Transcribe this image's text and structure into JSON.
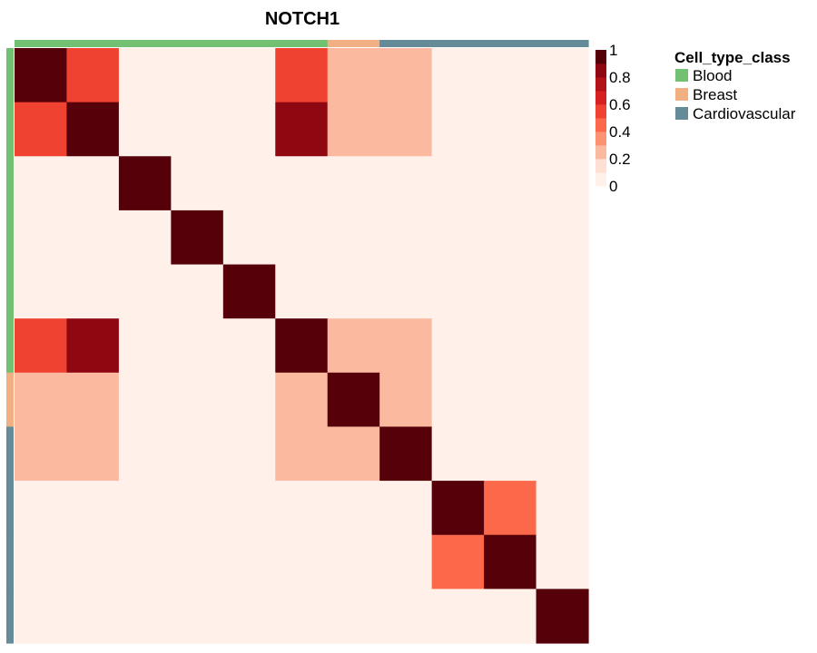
{
  "chart_data": {
    "type": "heatmap",
    "title": "NOTCH1",
    "n": 11,
    "groups": [
      "Blood",
      "Blood",
      "Blood",
      "Blood",
      "Blood",
      "Blood",
      "Breast",
      "Cardiovascular",
      "Cardiovascular",
      "Cardiovascular",
      "Cardiovascular"
    ],
    "matrix": [
      [
        1.0,
        0.6,
        0.05,
        0.05,
        0.05,
        0.6,
        0.3,
        0.3,
        0.05,
        0.05,
        0.05
      ],
      [
        0.6,
        1.0,
        0.05,
        0.05,
        0.05,
        0.9,
        0.3,
        0.3,
        0.05,
        0.05,
        0.05
      ],
      [
        0.05,
        0.05,
        1.0,
        0.05,
        0.05,
        0.05,
        0.05,
        0.05,
        0.05,
        0.05,
        0.05
      ],
      [
        0.05,
        0.05,
        0.05,
        1.0,
        0.05,
        0.05,
        0.05,
        0.05,
        0.05,
        0.05,
        0.05
      ],
      [
        0.05,
        0.05,
        0.05,
        0.05,
        1.0,
        0.05,
        0.05,
        0.05,
        0.05,
        0.05,
        0.05
      ],
      [
        0.6,
        0.9,
        0.05,
        0.05,
        0.05,
        1.0,
        0.3,
        0.3,
        0.05,
        0.05,
        0.05
      ],
      [
        0.3,
        0.3,
        0.05,
        0.05,
        0.05,
        0.3,
        1.0,
        0.3,
        0.05,
        0.05,
        0.05
      ],
      [
        0.3,
        0.3,
        0.05,
        0.05,
        0.05,
        0.3,
        0.3,
        1.0,
        0.05,
        0.05,
        0.05
      ],
      [
        0.05,
        0.05,
        0.05,
        0.05,
        0.05,
        0.05,
        0.05,
        0.05,
        1.0,
        0.5,
        0.05
      ],
      [
        0.05,
        0.05,
        0.05,
        0.05,
        0.05,
        0.05,
        0.05,
        0.05,
        0.5,
        1.0,
        0.05
      ],
      [
        0.05,
        0.05,
        0.05,
        0.05,
        0.05,
        0.05,
        0.05,
        0.05,
        0.05,
        0.05,
        1.0
      ]
    ],
    "color_bins": [
      {
        "max": 0.1,
        "color": "#fff0ea"
      },
      {
        "max": 0.2,
        "color": "#fedfd3"
      },
      {
        "max": 0.3,
        "color": "#fbbaa0"
      },
      {
        "max": 0.4,
        "color": "#fb9272"
      },
      {
        "max": 0.5,
        "color": "#fb694a"
      },
      {
        "max": 0.6,
        "color": "#f04230"
      },
      {
        "max": 0.7,
        "color": "#d52121"
      },
      {
        "max": 0.8,
        "color": "#b21218"
      },
      {
        "max": 0.9,
        "color": "#8e0711"
      },
      {
        "max": 1.0,
        "color": "#560009"
      }
    ],
    "colorbar_ticks": [
      "1",
      "0.8",
      "0.6",
      "0.4",
      "0.2",
      "0"
    ],
    "range": [
      0,
      1
    ],
    "legend": {
      "title": "Cell_type_class",
      "items": [
        {
          "label": "Blood",
          "color": "#72c173"
        },
        {
          "label": "Breast",
          "color": "#f1b083"
        },
        {
          "label": "Cardiovascular",
          "color": "#658a98"
        }
      ]
    }
  }
}
